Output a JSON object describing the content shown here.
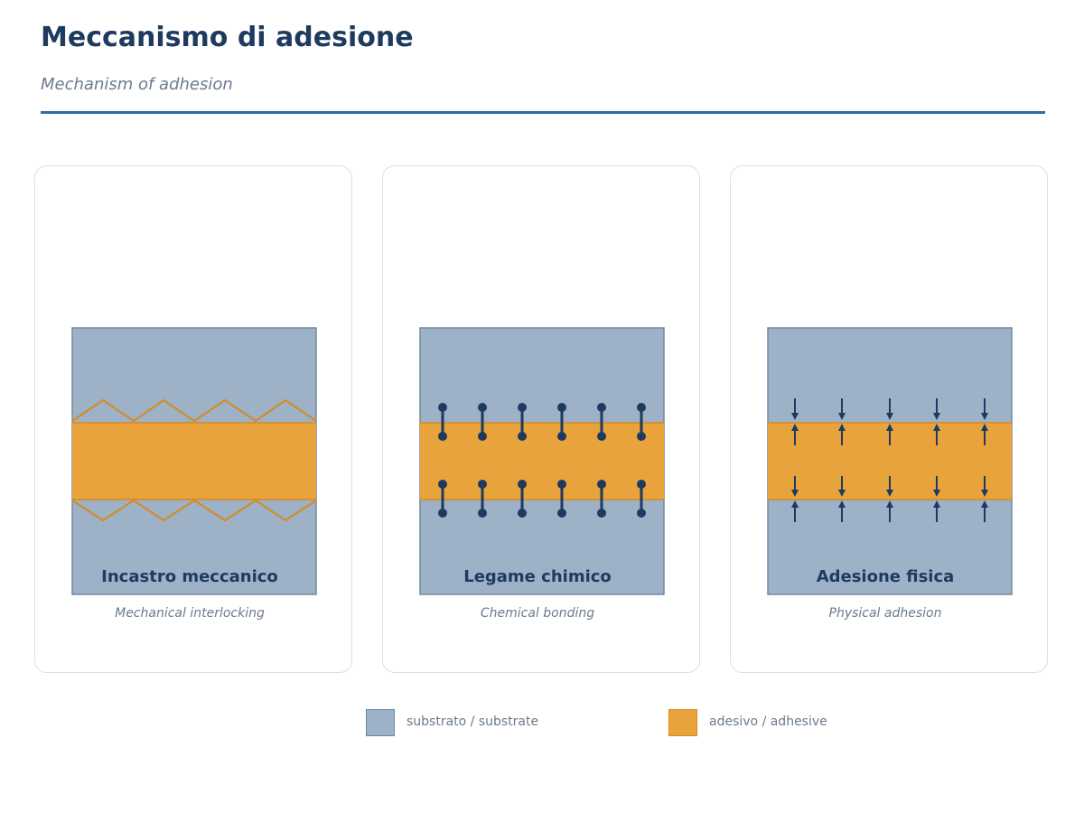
{
  "header": {
    "title": "Meccanismo di adesione",
    "subtitle": "Mechanism of adhesion"
  },
  "panels": [
    {
      "title": "Incastro meccanico",
      "subtitle": "Mechanical interlocking",
      "illustration": "zigzag-interface"
    },
    {
      "title": "Legame chimico",
      "subtitle": "Chemical bonding",
      "illustration": "bond-pairs"
    },
    {
      "title": "Adesione fisica",
      "subtitle": "Physical adhesion",
      "illustration": "attraction-arrows"
    }
  ],
  "legend": [
    {
      "label": "substrato / substrate",
      "fill": "#9db1c7",
      "stroke": "#6f87a0"
    },
    {
      "label": "adesivo / adhesive",
      "fill": "#e8a33d",
      "stroke": "#d68a1f"
    }
  ],
  "colors": {
    "substrate": "#9db1c7",
    "substrate_border": "#7289a2",
    "adhesive": "#e8a33d",
    "adhesive_border": "#d68a1f",
    "mark": "#1e3a5f",
    "accent_rule": "#2f6da3"
  }
}
